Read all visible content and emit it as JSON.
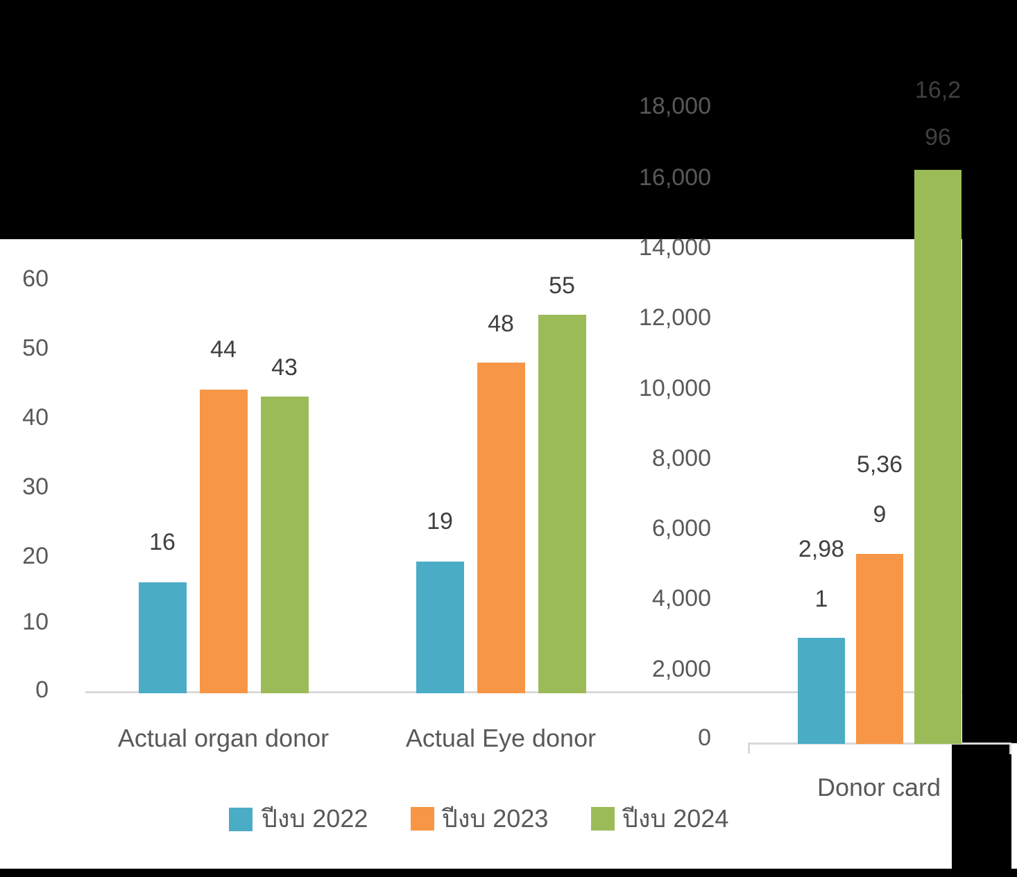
{
  "slide": {
    "background_color": "#000000",
    "plot_background_color": "#FFFFFF"
  },
  "colors": {
    "axis_text": "#595959",
    "category_text": "#595959",
    "data_label_text": "#404040",
    "axis_line": "#D9D9D9",
    "series_2022": "#4BACC6",
    "series_2023": "#F79646",
    "series_2024": "#9BBB59"
  },
  "legend": {
    "position": "bottom",
    "items": [
      {
        "label": "ปีงบ 2022",
        "color": "#4BACC6"
      },
      {
        "label": "ปีงบ 2023",
        "color": "#F79646"
      },
      {
        "label": "ปีงบ 2024",
        "color": "#9BBB59"
      }
    ]
  },
  "chart_data": [
    {
      "type": "bar",
      "title": "",
      "categories": [
        "Actual organ donor",
        "Actual Eye donor"
      ],
      "series": [
        {
          "name": "ปีงบ 2022",
          "color": "#4BACC6",
          "values": [
            16,
            19
          ],
          "data_labels": [
            [
              "16"
            ],
            [
              "19"
            ]
          ]
        },
        {
          "name": "ปีงบ 2023",
          "color": "#F79646",
          "values": [
            44,
            48
          ],
          "data_labels": [
            [
              "44"
            ],
            [
              "48"
            ]
          ]
        },
        {
          "name": "ปีงบ 2024",
          "color": "#9BBB59",
          "values": [
            43,
            55
          ],
          "data_labels": [
            [
              "43"
            ],
            [
              "55"
            ]
          ]
        }
      ],
      "xlabel": "",
      "ylabel": "",
      "ylim": [
        0,
        60
      ],
      "yticks": [
        "0",
        "10",
        "20",
        "30",
        "40",
        "50",
        "60"
      ],
      "axis_side": "left",
      "grid": false,
      "legend_position": "bottom"
    },
    {
      "type": "bar",
      "title": "",
      "categories": [
        "Donor card"
      ],
      "series": [
        {
          "name": "ปีงบ 2022",
          "color": "#4BACC6",
          "values": [
            2981
          ],
          "data_labels": [
            [
              "2,98",
              "1"
            ]
          ]
        },
        {
          "name": "ปีงบ 2023",
          "color": "#F79646",
          "values": [
            5369
          ],
          "data_labels": [
            [
              "5,36",
              "9"
            ]
          ]
        },
        {
          "name": "ปีงบ 2024",
          "color": "#9BBB59",
          "values": [
            16296
          ],
          "data_labels": [
            [
              "16,2",
              "96"
            ]
          ]
        }
      ],
      "xlabel": "",
      "ylabel": "",
      "ylim": [
        0,
        18000
      ],
      "yticks": [
        "0",
        "2,000",
        "4,000",
        "6,000",
        "8,000",
        "10,000",
        "12,000",
        "14,000",
        "16,000",
        "18,000"
      ],
      "axis_side": "right",
      "grid": false
    }
  ]
}
